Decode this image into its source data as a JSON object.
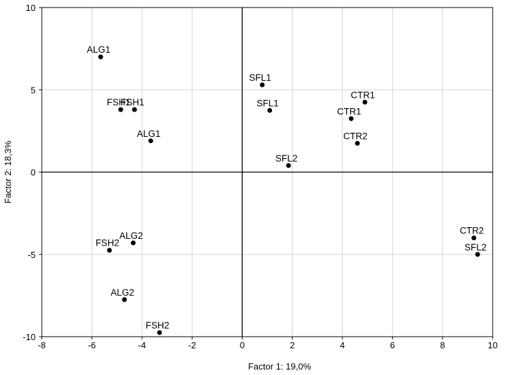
{
  "chart_data": {
    "type": "scatter",
    "xlabel": "Factor 1: 19,0%",
    "ylabel": "Factor 2: 18,3%",
    "xlim": [
      -8,
      10
    ],
    "ylim": [
      -10,
      10
    ],
    "xticks": [
      -8,
      -6,
      -4,
      -2,
      0,
      2,
      4,
      6,
      8,
      10
    ],
    "yticks": [
      10,
      5,
      0,
      -5,
      -10
    ],
    "xtick_labels": [
      "-8",
      "-6",
      "-4",
      "-2",
      "0",
      "2",
      "4",
      "6",
      "8",
      "10"
    ],
    "ytick_labels": [
      "10",
      "5",
      "0",
      "-5",
      "-10"
    ],
    "grid": true,
    "reference_lines": {
      "x": 0,
      "y": 0
    },
    "point_color": "#000000",
    "points": [
      {
        "label": "ALG1",
        "x": -5.65,
        "y": 7.0
      },
      {
        "label": "FSH1",
        "x": -4.85,
        "y": 3.8
      },
      {
        "label": "FSH1",
        "x": -4.3,
        "y": 3.8
      },
      {
        "label": "ALG1",
        "x": -3.65,
        "y": 1.9
      },
      {
        "label": "SFL1",
        "x": 0.8,
        "y": 5.3
      },
      {
        "label": "SFL1",
        "x": 1.1,
        "y": 3.75
      },
      {
        "label": "SFL2",
        "x": 1.85,
        "y": 0.4
      },
      {
        "label": "CTR1",
        "x": 4.9,
        "y": 4.25
      },
      {
        "label": "CTR1",
        "x": 4.35,
        "y": 3.25
      },
      {
        "label": "CTR2",
        "x": 4.6,
        "y": 1.75
      },
      {
        "label": "CTR2",
        "x": 9.25,
        "y": -4.0
      },
      {
        "label": "SFL2",
        "x": 9.4,
        "y": -5.0
      },
      {
        "label": "FSH2",
        "x": -5.3,
        "y": -4.75
      },
      {
        "label": "ALG2",
        "x": -4.35,
        "y": -4.3
      },
      {
        "label": "ALG2",
        "x": -4.7,
        "y": -7.75
      },
      {
        "label": "FSH2",
        "x": -3.3,
        "y": -9.75
      }
    ]
  }
}
